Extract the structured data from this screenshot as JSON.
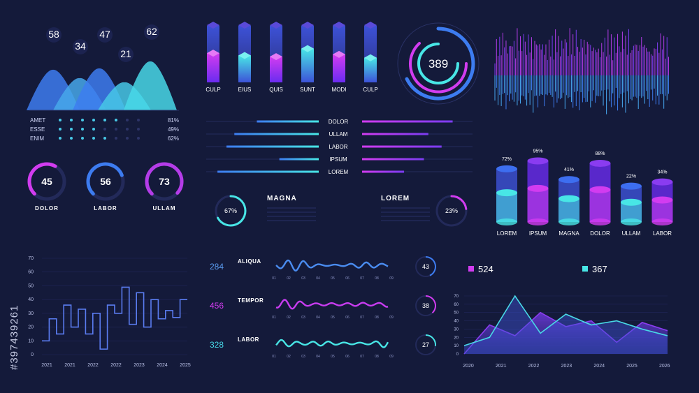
{
  "colors": {
    "background": "#141a3a",
    "cyan": "#48e6e6",
    "blue": "#3d7cf0",
    "purple": "#8a3cf5",
    "magenta": "#d23cf0"
  },
  "watermark_code": "#397439261",
  "chart_data": [
    {
      "type": "area",
      "id": "mountains",
      "categories": [
        "AMET",
        "ESSE",
        "ENIM"
      ],
      "peak_labels": [
        58,
        34,
        47,
        21,
        62
      ],
      "dot_rows": [
        {
          "label": "AMET",
          "value": "81%"
        },
        {
          "label": "ESSE",
          "value": "49%"
        },
        {
          "label": "ENIM",
          "value": "62%"
        }
      ]
    },
    {
      "type": "bar",
      "id": "vertical-capsules",
      "categories": [
        "CULP",
        "EIUS",
        "QUIS",
        "SUNT",
        "MODI",
        "CULP"
      ],
      "values": [
        40,
        30,
        25,
        60,
        35,
        20
      ]
    },
    {
      "type": "pie",
      "id": "radial",
      "center_label": "389"
    },
    {
      "type": "bar",
      "id": "waveform",
      "values_upper": [
        30,
        55,
        42,
        60,
        38,
        70,
        48,
        62,
        35,
        58,
        45,
        66,
        52,
        40,
        72,
        50,
        62,
        44,
        70,
        56,
        38,
        64,
        48,
        58,
        40,
        52,
        68,
        46,
        60,
        42,
        54,
        36,
        50
      ],
      "values_lower": [
        40,
        28,
        50,
        35,
        62,
        30,
        45,
        55,
        38,
        48,
        30,
        58,
        42,
        36,
        52,
        44,
        60,
        32,
        50,
        40,
        56,
        34,
        48,
        38,
        60,
        42,
        36,
        54,
        46,
        30,
        44,
        52,
        34
      ]
    },
    {
      "type": "bar",
      "id": "horizontal-bars",
      "categories": [
        "DOLOR",
        "ULLAM",
        "LABOR",
        "IPSUM",
        "LOREM"
      ],
      "left_values": [
        55,
        75,
        82,
        35,
        90
      ],
      "right_values": [
        82,
        60,
        72,
        56,
        38
      ]
    },
    {
      "type": "bar",
      "id": "gauges",
      "items": [
        {
          "label": "DOLOR",
          "value": 45
        },
        {
          "label": "LABOR",
          "value": 56
        },
        {
          "label": "ULLAM",
          "value": 73
        }
      ]
    },
    {
      "type": "pie",
      "id": "donuts",
      "items": [
        {
          "label": "MAGNA",
          "value": 67,
          "display": "67%"
        },
        {
          "label": "LOREM",
          "value": 23,
          "display": "23%"
        }
      ]
    },
    {
      "type": "bar",
      "id": "cylinders",
      "categories": [
        "LOREM",
        "IPSUM",
        "MAGNA",
        "DOLOR",
        "ULLAM",
        "LABOR"
      ],
      "values": [
        72,
        95,
        41,
        88,
        22,
        34
      ],
      "labels": [
        "72%",
        "95%",
        "41%",
        "88%",
        "22%",
        "34%"
      ]
    },
    {
      "type": "line",
      "id": "step-chart",
      "x_ticks": [
        "2021",
        "2021",
        "2022",
        "2022",
        "2023",
        "2024",
        "2025"
      ],
      "y_ticks": [
        0,
        10,
        20,
        30,
        40,
        50,
        60,
        70
      ],
      "ylim": [
        0,
        70
      ],
      "values": [
        10,
        26,
        15,
        36,
        20,
        33,
        15,
        30,
        4,
        36,
        30,
        49,
        22,
        45,
        20,
        40,
        26,
        32,
        27,
        40
      ]
    },
    {
      "type": "line",
      "id": "waves",
      "x_ticks": [
        "01",
        "02",
        "03",
        "04",
        "05",
        "06",
        "07",
        "08",
        "09"
      ],
      "rows": [
        {
          "label": "ALIQUA",
          "value": "284",
          "ring": 43
        },
        {
          "label": "TEMPOR",
          "value": "456",
          "ring": 38
        },
        {
          "label": "LABOR",
          "value": "328",
          "ring": 27
        }
      ]
    },
    {
      "type": "area",
      "id": "area-chart",
      "legend": [
        {
          "name": "524"
        },
        {
          "name": "367"
        }
      ],
      "x_ticks": [
        "2020",
        "2021",
        "2022",
        "2023",
        "2024",
        "2025",
        "2026"
      ],
      "y_ticks": [
        0,
        10,
        20,
        30,
        40,
        50,
        60,
        70
      ],
      "ylim": [
        0,
        70
      ],
      "series": [
        {
          "name": "524",
          "values": [
            0,
            35,
            22,
            50,
            33,
            40,
            14,
            38,
            28
          ]
        },
        {
          "name": "367",
          "values": [
            10,
            20,
            70,
            25,
            48,
            35,
            40,
            30,
            22
          ]
        }
      ]
    }
  ]
}
